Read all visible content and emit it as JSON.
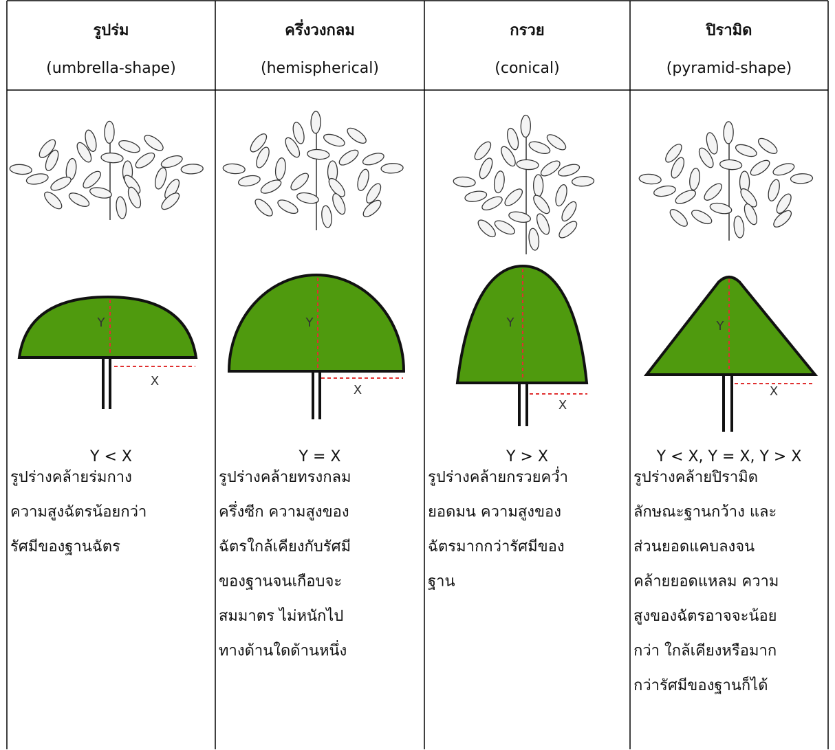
{
  "table": {
    "columns": [
      {
        "title": "รูปร่ม",
        "subtitle": "(umbrella-shape)",
        "y_label": "Y",
        "x_label": "X",
        "relation": "Y < X",
        "description": [
          "รูปร่างคล้ายร่มกาง",
          "ความสูงฉัตรน้อยกว่า",
          "รัศมีของฐานฉัตร"
        ]
      },
      {
        "title": "ครึ่งวงกลม",
        "subtitle": "(hemispherical)",
        "y_label": "Y",
        "x_label": "X",
        "relation": "Y = X",
        "description": [
          "รูปร่างคล้ายทรงกลม",
          "ครึ่งซีก ความสูงของ",
          "ฉัตรใกล้เคียงกับรัศมี",
          "ของฐานจนเกือบจะ",
          "สมมาตร ไม่หนักไป",
          "ทางด้านใดด้านหนึ่ง"
        ]
      },
      {
        "title": "กรวย",
        "subtitle": "(conical)",
        "y_label": "Y",
        "x_label": "X",
        "relation": "Y > X",
        "description": [
          "รูปร่างคล้ายกรวยคว่ำ",
          "ยอดมน ความสูงของ",
          "ฉัตรมากกว่ารัศมีของ",
          "ฐาน"
        ]
      },
      {
        "title": "ปิรามิด",
        "subtitle": "(pyramid-shape)",
        "y_label": "Y",
        "x_label": "X",
        "relation": "Y < X, Y = X, Y > X",
        "description": [
          "รูปร่างคล้ายปิรามิด",
          "ลักษณะฐานกว้าง และ",
          "ส่วนยอดแคบลงจน",
          "คล้ายยอดแหลม ความ",
          "สูงของฉัตรอาจจะน้อย",
          "กว่า ใกล้เคียงหรือมาก",
          "กว่ารัศมีของฐานก็ได้"
        ]
      }
    ]
  }
}
